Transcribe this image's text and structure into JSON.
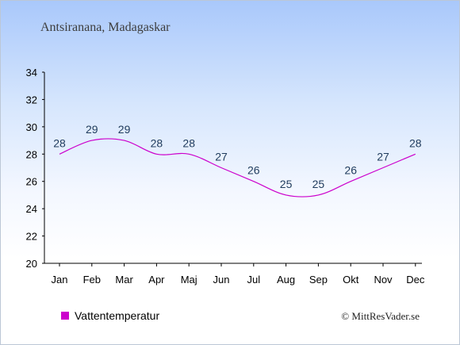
{
  "chart_data": {
    "type": "line",
    "title": "Antsiranana, Madagaskar",
    "categories": [
      "Jan",
      "Feb",
      "Mar",
      "Apr",
      "Maj",
      "Jun",
      "Jul",
      "Aug",
      "Sep",
      "Okt",
      "Nov",
      "Dec"
    ],
    "series": [
      {
        "name": "Vattentemperatur",
        "values": [
          28,
          29,
          29,
          28,
          28,
          27,
          26,
          25,
          25,
          26,
          27,
          28
        ],
        "color": "#cc00cc"
      }
    ],
    "ylim": [
      20,
      34
    ],
    "yticks": [
      20,
      22,
      24,
      26,
      28,
      30,
      32,
      34
    ],
    "grid": false,
    "legend_position": "bottom-left"
  },
  "credit": "© MittResVader.se",
  "colors": {
    "line": "#cc00cc",
    "label": "#1f3b5c",
    "axis": "#000000"
  }
}
